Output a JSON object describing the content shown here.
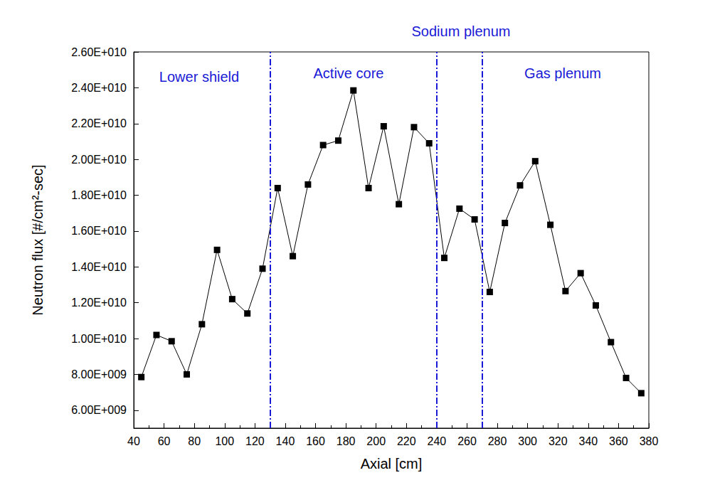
{
  "chart_data": {
    "type": "line",
    "x_label": "Axial [cm]",
    "y_label": "Neutron flux [#/cm²-sec]",
    "x": [
      45,
      55,
      65,
      75,
      85,
      95,
      105,
      115,
      125,
      135,
      145,
      155,
      165,
      175,
      185,
      195,
      205,
      215,
      225,
      235,
      245,
      255,
      265,
      275,
      285,
      295,
      305,
      315,
      325,
      335,
      345,
      355,
      365,
      375
    ],
    "series": [
      {
        "name": "Neutron flux",
        "color": "#000000",
        "marker": "square",
        "line_style": "solid",
        "values": [
          7850000000.0,
          10200000000.0,
          9850000000.0,
          8000000000.0,
          10800000000.0,
          14950000000.0,
          12200000000.0,
          11400000000.0,
          13900000000.0,
          18400000000.0,
          14600000000.0,
          18600000000.0,
          20800000000.0,
          21050000000.0,
          23850000000.0,
          18400000000.0,
          21850000000.0,
          17500000000.0,
          21800000000.0,
          20900000000.0,
          14500000000.0,
          17250000000.0,
          16650000000.0,
          12600000000.0,
          16450000000.0,
          18550000000.0,
          19900000000.0,
          16350000000.0,
          12650000000.0,
          13650000000.0,
          11850000000.0,
          9800000000.0,
          7800000000.0,
          6950000000.0
        ]
      }
    ],
    "xlim": [
      40,
      380
    ],
    "xticks": [
      40,
      60,
      80,
      100,
      120,
      140,
      160,
      180,
      200,
      220,
      240,
      260,
      280,
      300,
      320,
      340,
      360,
      380
    ],
    "ylim": [
      5000000000,
      26000000000
    ],
    "yticks": [
      {
        "value": 6000000000,
        "label": "6.00E+009"
      },
      {
        "value": 8000000000,
        "label": "8.00E+009"
      },
      {
        "value": 10000000000,
        "label": "1.00E+010"
      },
      {
        "value": 12000000000,
        "label": "1.20E+010"
      },
      {
        "value": 14000000000,
        "label": "1.40E+010"
      },
      {
        "value": 16000000000,
        "label": "1.60E+010"
      },
      {
        "value": 18000000000,
        "label": "1.80E+010"
      },
      {
        "value": 20000000000,
        "label": "2.00E+010"
      },
      {
        "value": 22000000000,
        "label": "2.20E+010"
      },
      {
        "value": 24000000000,
        "label": "2.40E+010"
      },
      {
        "value": 26000000000,
        "label": "2.60E+010"
      }
    ],
    "boundaries": {
      "color": "#1a1ad6",
      "line_style": "dashdot",
      "x": [
        130,
        240,
        270
      ]
    },
    "annotations": [
      {
        "text": "Lower shield",
        "color": "#1a1ad6"
      },
      {
        "text": "Active core",
        "color": "#1a1ad6"
      },
      {
        "text": "Sodium plenum",
        "color": "#1a1ad6"
      },
      {
        "text": "Gas plenum",
        "color": "#1a1ad6"
      }
    ],
    "grid": false
  }
}
